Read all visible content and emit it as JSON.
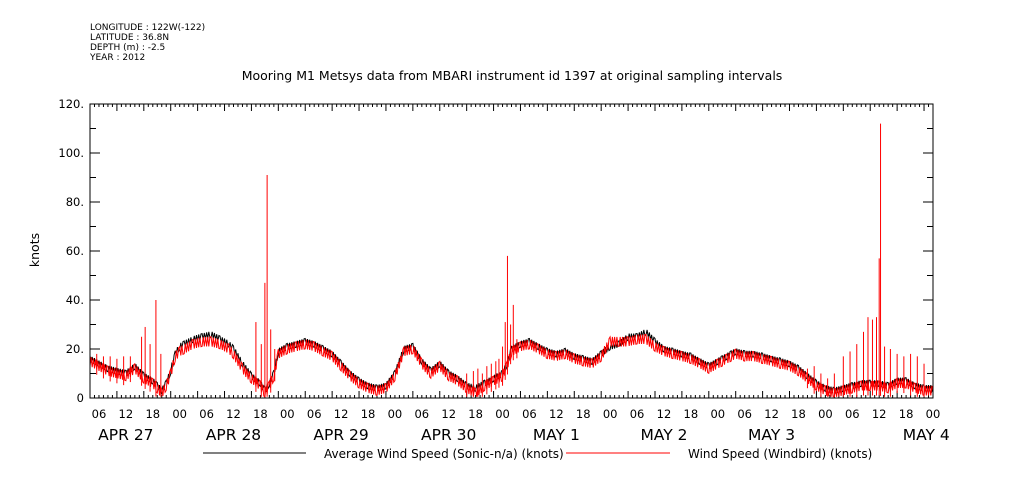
{
  "header": {
    "longitude": "LONGITUDE : 122W(-122)",
    "latitude": "LATITUDE : 36.8N",
    "depth": "DEPTH (m) : -2.5",
    "year": "YEAR : 2012"
  },
  "chart_data": {
    "type": "line",
    "title": "Mooring M1 Metsys data from MBARI instrument id 1397 at original sampling intervals",
    "ylabel": "knots",
    "ylim": [
      0,
      120
    ],
    "yticks": [
      "0",
      "20.",
      "40.",
      "60.",
      "80.",
      "100.",
      "120."
    ],
    "x_range_hours": [
      0,
      188
    ],
    "hour_tick_labels": [
      "06",
      "12",
      "18",
      "00",
      "06",
      "12",
      "18",
      "00",
      "06",
      "12",
      "18",
      "00",
      "06",
      "12",
      "18",
      "00",
      "06",
      "12",
      "18",
      "00",
      "06",
      "12",
      "18",
      "00",
      "06",
      "12",
      "18",
      "00",
      "06",
      "12",
      "18",
      "00"
    ],
    "day_labels": [
      "APR 27",
      "APR 28",
      "APR 29",
      "APR 30",
      "MAY  1",
      "MAY  2",
      "MAY  3",
      "MAY  4"
    ],
    "legend_placement": "bottom",
    "series": [
      {
        "name": "Average Wind Speed (Sonic-n/a) (knots)",
        "color": "#000000",
        "x": [
          0,
          4,
          8,
          10,
          12,
          14,
          15,
          16,
          17,
          18,
          19,
          20,
          21,
          23,
          25,
          27,
          29,
          31,
          32,
          34,
          36,
          38,
          39,
          40,
          41,
          42,
          44,
          46,
          48,
          50,
          52,
          54,
          56,
          58,
          60,
          62,
          64,
          66,
          68,
          70,
          72,
          74,
          76,
          78,
          80,
          82,
          84,
          86,
          88,
          90,
          92,
          93,
          94,
          96,
          98,
          100,
          102,
          104,
          106,
          108,
          110,
          112,
          114,
          116,
          118,
          120,
          122,
          124,
          126,
          128,
          130,
          132,
          134,
          136,
          138,
          140,
          141,
          142,
          143,
          144,
          146,
          148,
          150,
          152,
          154,
          156,
          158,
          160,
          162,
          164,
          166,
          168,
          170,
          172,
          174,
          176,
          178,
          180,
          182,
          184,
          186,
          188
        ],
        "values": [
          16,
          12,
          10,
          13,
          9,
          7,
          5,
          3,
          6,
          11,
          18,
          21,
          22,
          24,
          25,
          26,
          24,
          22,
          20,
          14,
          9,
          6,
          3,
          6,
          10,
          19,
          21,
          22,
          23,
          22,
          20,
          18,
          14,
          10,
          7,
          5,
          4,
          5,
          10,
          20,
          21,
          15,
          11,
          14,
          10,
          8,
          5,
          4,
          6,
          8,
          10,
          14,
          20,
          22,
          23,
          21,
          19,
          18,
          19,
          17,
          16,
          15,
          18,
          21,
          22,
          25,
          25,
          27,
          23,
          20,
          19,
          18,
          17,
          15,
          13,
          15,
          16,
          17,
          18,
          19,
          18,
          18,
          17,
          16,
          15,
          14,
          12,
          9,
          6,
          4,
          3,
          4,
          5,
          6,
          6,
          6,
          5,
          7,
          7,
          5,
          4,
          4
        ]
      },
      {
        "name": "Wind Speed (Windbird) (knots)",
        "color": "#ff0000",
        "x": [
          0,
          4,
          8,
          10,
          12,
          14,
          15,
          16,
          17,
          18,
          19,
          20,
          21,
          23,
          25,
          27,
          29,
          31,
          32,
          34,
          36,
          38,
          39,
          40,
          41,
          42,
          44,
          46,
          48,
          50,
          52,
          54,
          56,
          58,
          60,
          62,
          64,
          66,
          68,
          70,
          72,
          74,
          76,
          78,
          80,
          82,
          84,
          86,
          88,
          90,
          92,
          93,
          94,
          96,
          98,
          100,
          102,
          104,
          106,
          108,
          110,
          112,
          114,
          116,
          118,
          120,
          122,
          124,
          126,
          128,
          130,
          132,
          134,
          136,
          138,
          140,
          141,
          142,
          143,
          144,
          146,
          148,
          150,
          152,
          154,
          156,
          158,
          160,
          162,
          164,
          166,
          168,
          170,
          172,
          174,
          176,
          178,
          180,
          182,
          184,
          186,
          188
        ],
        "values": [
          15,
          11,
          9,
          12,
          8,
          6,
          4,
          2,
          5,
          10,
          17,
          19,
          20,
          22,
          23,
          23,
          22,
          20,
          18,
          12,
          8,
          5,
          2,
          5,
          9,
          18,
          20,
          21,
          22,
          21,
          19,
          17,
          13,
          9,
          6,
          4,
          3,
          4,
          9,
          19,
          20,
          14,
          10,
          13,
          9,
          7,
          4,
          2,
          5,
          7,
          9,
          13,
          19,
          21,
          22,
          20,
          18,
          17,
          18,
          16,
          15,
          14,
          17,
          23,
          23,
          23,
          24,
          24,
          21,
          19,
          18,
          17,
          16,
          14,
          12,
          14,
          15,
          16,
          17,
          18,
          17,
          17,
          16,
          15,
          14,
          13,
          11,
          8,
          5,
          3,
          2,
          3,
          4,
          5,
          5,
          5,
          4,
          6,
          6,
          4,
          3,
          3
        ],
        "spikes": [
          {
            "x": 11.5,
            "y": 25
          },
          {
            "x": 12.3,
            "y": 29
          },
          {
            "x": 13.4,
            "y": 22
          },
          {
            "x": 14.7,
            "y": 40
          },
          {
            "x": 15.8,
            "y": 18
          },
          {
            "x": 37.0,
            "y": 31
          },
          {
            "x": 38.2,
            "y": 22
          },
          {
            "x": 39.0,
            "y": 47
          },
          {
            "x": 39.5,
            "y": 91
          },
          {
            "x": 40.3,
            "y": 28
          },
          {
            "x": 41.2,
            "y": 20
          },
          {
            "x": 92.0,
            "y": 21
          },
          {
            "x": 92.6,
            "y": 31
          },
          {
            "x": 93.1,
            "y": 58
          },
          {
            "x": 93.8,
            "y": 30
          },
          {
            "x": 94.4,
            "y": 38
          },
          {
            "x": 95.2,
            "y": 24
          },
          {
            "x": 168.0,
            "y": 17
          },
          {
            "x": 169.5,
            "y": 19
          },
          {
            "x": 171.0,
            "y": 22
          },
          {
            "x": 172.5,
            "y": 27
          },
          {
            "x": 173.5,
            "y": 33
          },
          {
            "x": 174.5,
            "y": 32
          },
          {
            "x": 175.4,
            "y": 33
          },
          {
            "x": 176.0,
            "y": 57
          },
          {
            "x": 176.3,
            "y": 112
          },
          {
            "x": 177.2,
            "y": 21
          },
          {
            "x": 178.5,
            "y": 20
          },
          {
            "x": 180.0,
            "y": 18
          },
          {
            "x": 181.5,
            "y": 17
          },
          {
            "x": 183.0,
            "y": 18
          },
          {
            "x": 184.5,
            "y": 17
          },
          {
            "x": 186.0,
            "y": 14
          },
          {
            "x": 1.5,
            "y": 18
          },
          {
            "x": 3.0,
            "y": 17
          },
          {
            "x": 4.5,
            "y": 17
          },
          {
            "x": 6.0,
            "y": 16
          },
          {
            "x": 7.5,
            "y": 17
          },
          {
            "x": 9.0,
            "y": 17
          },
          {
            "x": 84.0,
            "y": 10
          },
          {
            "x": 85.5,
            "y": 11
          },
          {
            "x": 86.5,
            "y": 12
          },
          {
            "x": 87.5,
            "y": 10
          },
          {
            "x": 88.5,
            "y": 13
          },
          {
            "x": 89.5,
            "y": 14
          },
          {
            "x": 90.5,
            "y": 15
          },
          {
            "x": 91.2,
            "y": 16
          },
          {
            "x": 160.0,
            "y": 12
          },
          {
            "x": 161.5,
            "y": 13
          },
          {
            "x": 163.0,
            "y": 10
          },
          {
            "x": 164.5,
            "y": 8
          },
          {
            "x": 166.0,
            "y": 10
          }
        ]
      }
    ]
  }
}
